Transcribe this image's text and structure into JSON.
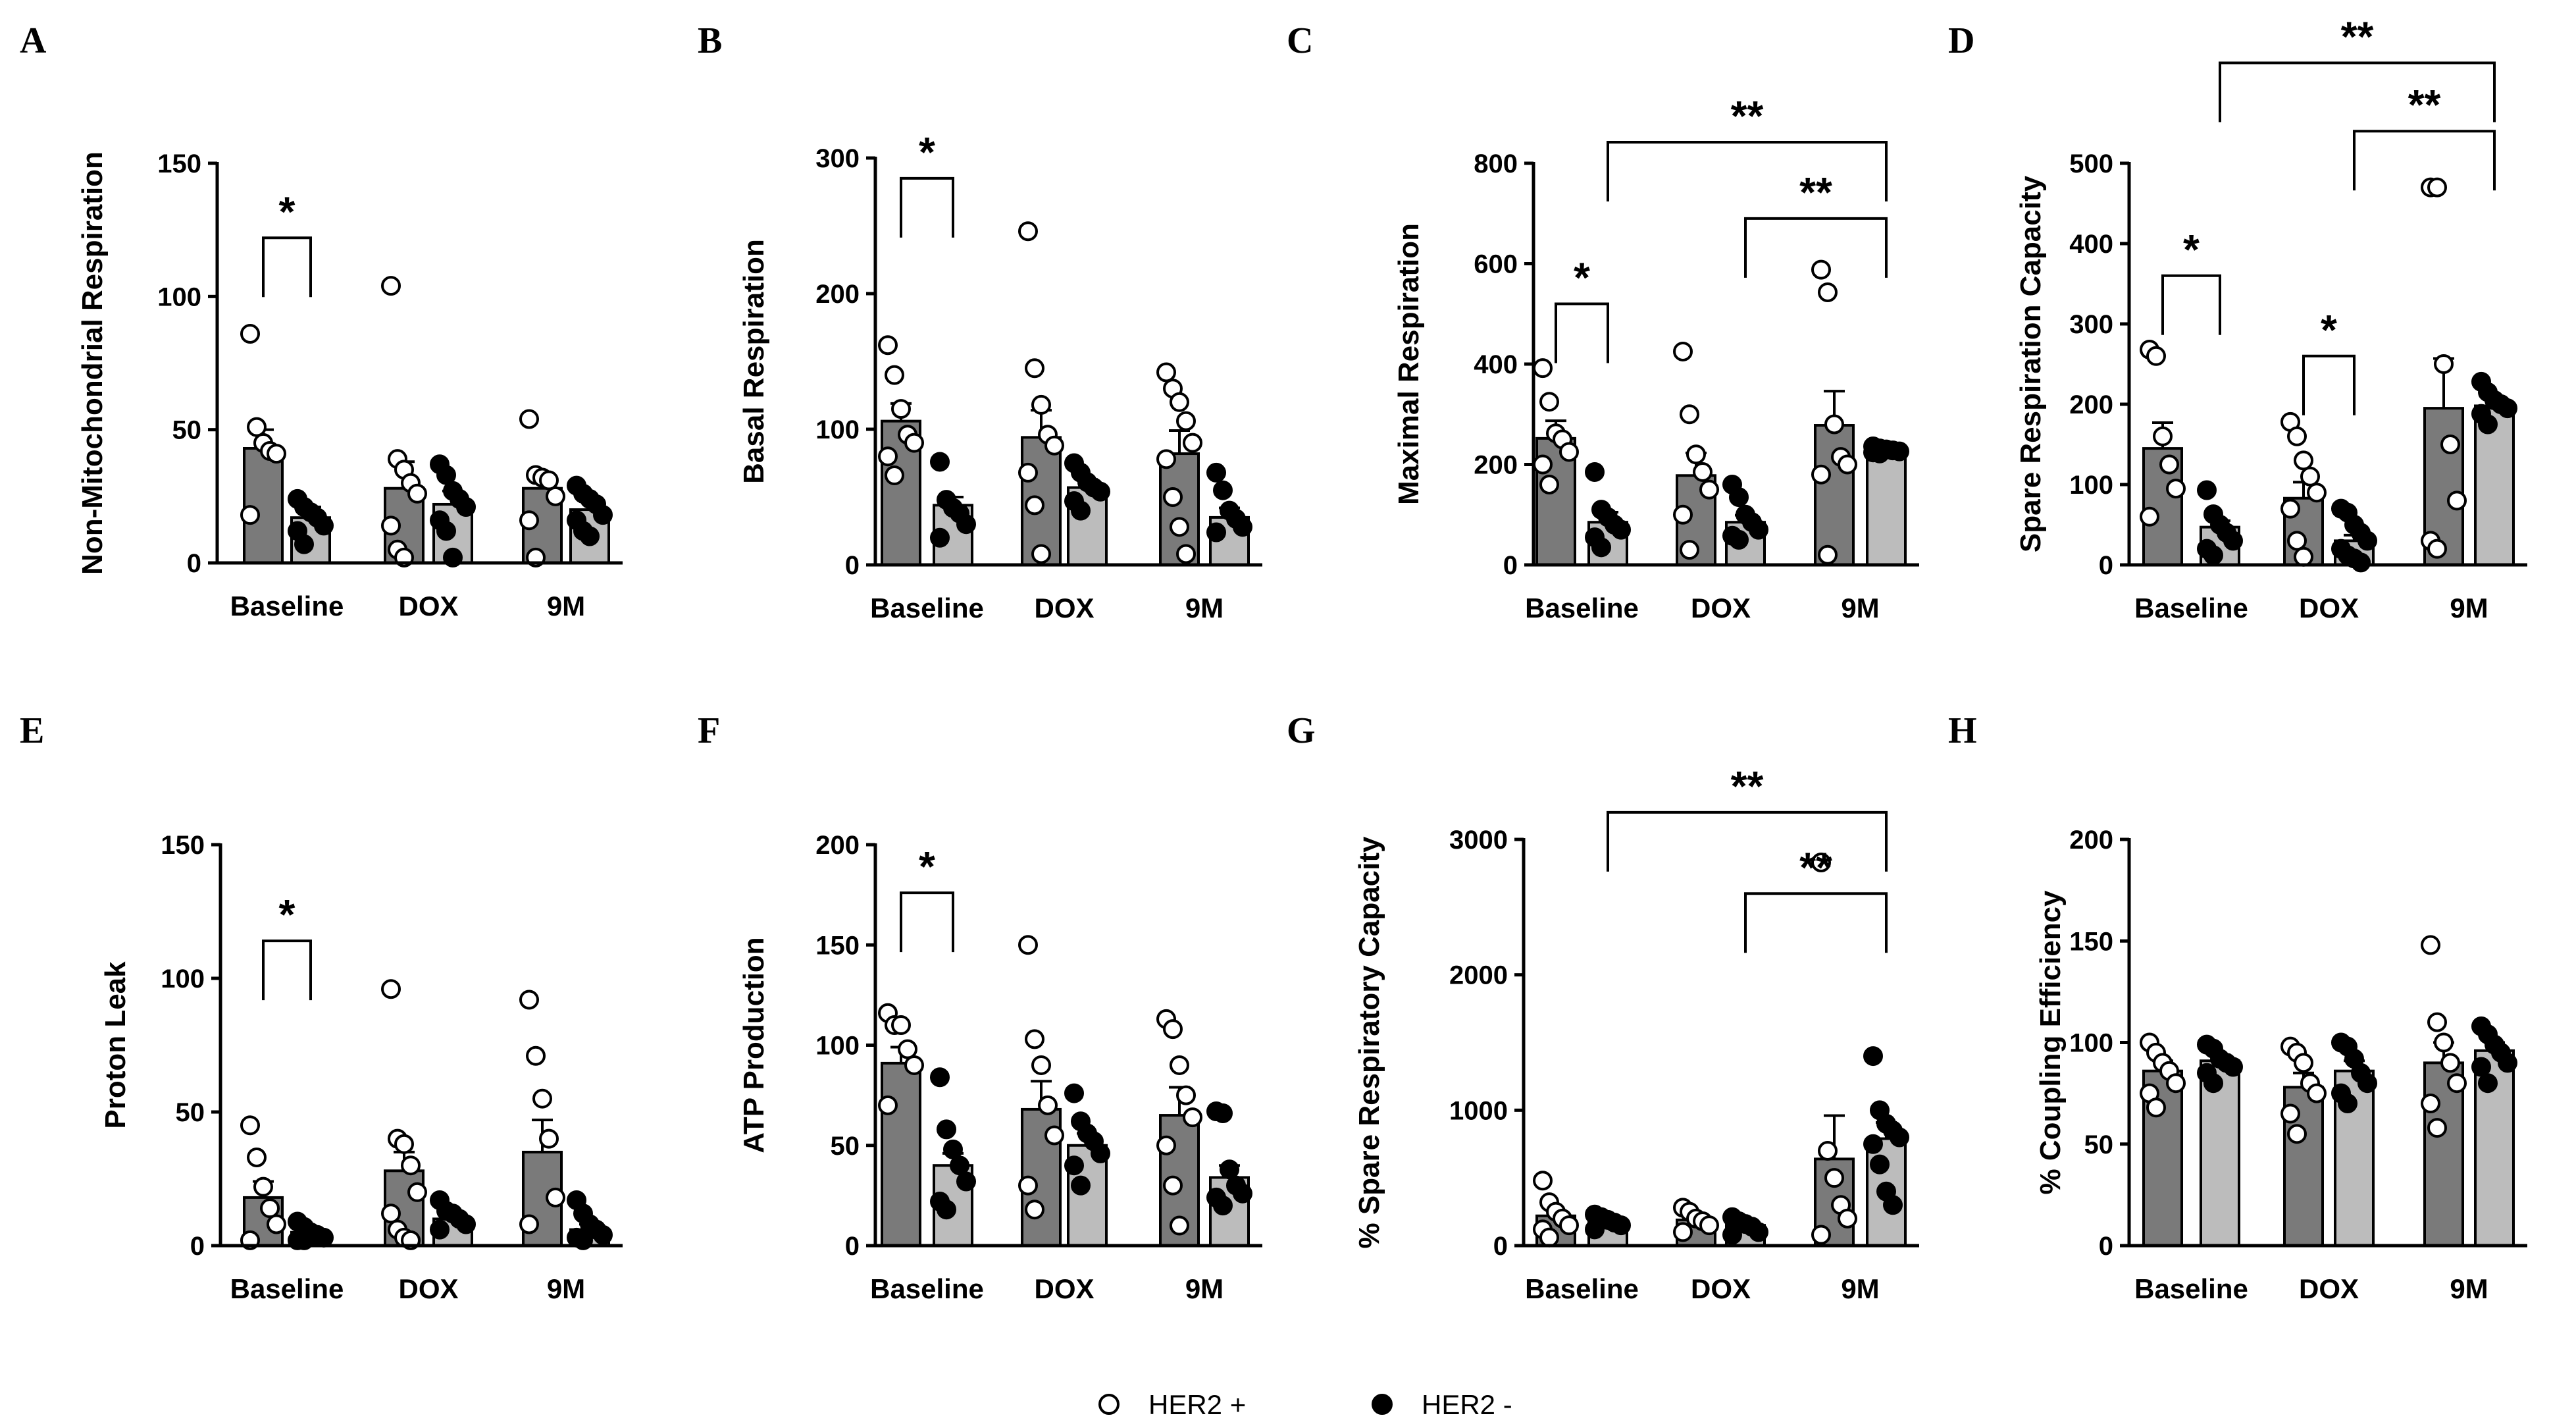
{
  "legend": {
    "items": [
      {
        "label": "HER2 +",
        "marker": "open-circle"
      },
      {
        "label": "HER2 -",
        "marker": "filled-circle"
      }
    ]
  },
  "colors": {
    "bar_her2_pos": "#7a7a7a",
    "bar_her2_neg": "#bcbcbc",
    "axis": "#000000"
  },
  "chart_data": [
    {
      "panel": "A",
      "type": "bar",
      "ylabel": "Non-Mitochondrial Respiration",
      "categories": [
        "Baseline",
        "DOX",
        "9M"
      ],
      "ylim": [
        0,
        150
      ],
      "yticks": [
        0,
        50,
        100,
        150
      ],
      "series": [
        {
          "name": "HER2 +",
          "values": [
            43,
            28,
            28
          ],
          "sem": [
            7,
            10,
            5
          ],
          "points": [
            [
              86,
              51,
              45,
              42,
              41,
              18
            ],
            [
              104,
              39,
              35,
              30,
              26,
              14,
              5,
              2
            ],
            [
              54,
              33,
              32,
              31,
              25,
              16,
              2
            ]
          ]
        },
        {
          "name": "HER2 -",
          "values": [
            17,
            22,
            20
          ],
          "sem": [
            4,
            5,
            3
          ],
          "points": [
            [
              24,
              21,
              19,
              17,
              14,
              12,
              7
            ],
            [
              37,
              33,
              27,
              24,
              21,
              16,
              12,
              2
            ],
            [
              29,
              26,
              24,
              22,
              18,
              16,
              12,
              10
            ]
          ]
        }
      ],
      "significance": [
        {
          "label": "*",
          "from": [
            0,
            0
          ],
          "to": [
            0,
            1
          ],
          "y": 122
        }
      ]
    },
    {
      "panel": "B",
      "type": "bar",
      "ylabel": "Basal Respiration",
      "categories": [
        "Baseline",
        "DOX",
        "9M"
      ],
      "ylim": [
        0,
        300
      ],
      "yticks": [
        0,
        100,
        200,
        300
      ],
      "series": [
        {
          "name": "HER2 +",
          "values": [
            106,
            94,
            82
          ],
          "sem": [
            13,
            20,
            17
          ],
          "points": [
            [
              162,
              140,
              115,
              96,
              90,
              80,
              66
            ],
            [
              246,
              145,
              118,
              96,
              88,
              68,
              44,
              8
            ],
            [
              142,
              130,
              120,
              106,
              90,
              78,
              50,
              28,
              8
            ]
          ]
        },
        {
          "name": "HER2 -",
          "values": [
            44,
            57,
            35
          ],
          "sem": [
            6,
            6,
            7
          ],
          "points": [
            [
              76,
              48,
              42,
              38,
              30,
              20
            ],
            [
              75,
              68,
              61,
              57,
              54,
              47,
              40
            ],
            [
              68,
              55,
              40,
              34,
              28,
              24
            ]
          ]
        }
      ],
      "significance": [
        {
          "label": "*",
          "from": [
            0,
            0
          ],
          "to": [
            0,
            1
          ],
          "y": 285
        }
      ]
    },
    {
      "panel": "C",
      "type": "bar",
      "ylabel": "Maximal Respiration",
      "categories": [
        "Baseline",
        "DOX",
        "9M"
      ],
      "ylim": [
        0,
        800
      ],
      "yticks": [
        0,
        200,
        400,
        600,
        800
      ],
      "series": [
        {
          "name": "HER2 +",
          "values": [
            252,
            178,
            278
          ],
          "sem": [
            35,
            45,
            68
          ],
          "points": [
            [
              392,
              325,
              262,
              250,
              225,
              200,
              160
            ],
            [
              425,
              300,
              220,
              185,
              150,
              100,
              30
            ],
            [
              588,
              543,
              280,
              215,
              200,
              180,
              20
            ]
          ]
        },
        {
          "name": "HER2 -",
          "values": [
            85,
            85,
            228
          ],
          "sem": [
            20,
            14,
            4
          ],
          "points": [
            [
              185,
              110,
              95,
              80,
              70,
              55,
              35
            ],
            [
              160,
              135,
              100,
              85,
              70,
              58,
              50
            ],
            [
              236,
              232,
              230,
              228,
              226,
              224,
              222
            ]
          ]
        }
      ],
      "significance": [
        {
          "label": "*",
          "from": [
            0,
            0
          ],
          "to": [
            0,
            1
          ],
          "y": 520
        },
        {
          "label": "**",
          "from": [
            0,
            1
          ],
          "to": [
            2,
            1
          ],
          "y": 842
        },
        {
          "label": "**",
          "from": [
            1,
            1
          ],
          "to": [
            2,
            1
          ],
          "y": 690
        }
      ]
    },
    {
      "panel": "D",
      "type": "bar",
      "ylabel": "Spare Respiration Capacity",
      "categories": [
        "Baseline",
        "DOX",
        "9M"
      ],
      "ylim": [
        0,
        500
      ],
      "yticks": [
        0,
        100,
        200,
        300,
        400,
        500
      ],
      "series": [
        {
          "name": "HER2 +",
          "values": [
            145,
            83,
            195
          ],
          "sem": [
            32,
            20,
            62
          ],
          "points": [
            [
              268,
              260,
              160,
              125,
              95,
              60
            ],
            [
              178,
              160,
              130,
              110,
              90,
              70,
              30,
              10
            ],
            [
              470,
              470,
              250,
              150,
              80,
              30,
              20
            ]
          ]
        },
        {
          "name": "HER2 -",
          "values": [
            47,
            30,
            198
          ],
          "sem": [
            8,
            7,
            10
          ],
          "points": [
            [
              93,
              63,
              50,
              40,
              30,
              20,
              12
            ],
            [
              70,
              65,
              50,
              40,
              30,
              20,
              12,
              8,
              3
            ],
            [
              228,
              215,
              205,
              200,
              195,
              188,
              175
            ]
          ]
        }
      ],
      "significance": [
        {
          "label": "*",
          "from": [
            0,
            0
          ],
          "to": [
            0,
            1
          ],
          "y": 360
        },
        {
          "label": "**",
          "from": [
            0,
            1
          ],
          "to": [
            2,
            1
          ],
          "y": 625
        },
        {
          "label": "**",
          "from": [
            1,
            1
          ],
          "to": [
            2,
            1
          ],
          "y": 540
        },
        {
          "label": "*",
          "from": [
            1,
            0
          ],
          "to": [
            1,
            1
          ],
          "y": 260
        }
      ]
    },
    {
      "panel": "E",
      "type": "bar",
      "ylabel": "Proton Leak",
      "categories": [
        "Baseline",
        "DOX",
        "9M"
      ],
      "ylim": [
        0,
        150
      ],
      "yticks": [
        0,
        50,
        100,
        150
      ],
      "series": [
        {
          "name": "HER2 +",
          "values": [
            18,
            28,
            35
          ],
          "sem": [
            6,
            7,
            12
          ],
          "points": [
            [
              45,
              33,
              22,
              14,
              8,
              2
            ],
            [
              96,
              40,
              38,
              30,
              20,
              12,
              6,
              3,
              2
            ],
            [
              92,
              71,
              55,
              40,
              18,
              8
            ]
          ]
        },
        {
          "name": "HER2 -",
          "values": [
            5,
            10,
            6
          ],
          "sem": [
            1,
            2,
            2
          ],
          "points": [
            [
              9,
              7,
              5,
              4,
              3,
              2,
              2
            ],
            [
              17,
              13,
              12,
              10,
              8,
              6
            ],
            [
              17,
              12,
              8,
              6,
              4,
              3,
              2
            ]
          ]
        }
      ],
      "significance": [
        {
          "label": "*",
          "from": [
            0,
            0
          ],
          "to": [
            0,
            1
          ],
          "y": 114
        }
      ]
    },
    {
      "panel": "F",
      "type": "bar",
      "ylabel": "ATP Production",
      "categories": [
        "Baseline",
        "DOX",
        "9M"
      ],
      "ylim": [
        0,
        200
      ],
      "yticks": [
        0,
        50,
        100,
        150,
        200
      ],
      "series": [
        {
          "name": "HER2 +",
          "values": [
            91,
            68,
            65
          ],
          "sem": [
            8,
            14,
            14
          ],
          "points": [
            [
              116,
              110,
              110,
              98,
              90,
              70
            ],
            [
              150,
              103,
              90,
              70,
              55,
              30,
              18
            ],
            [
              113,
              108,
              90,
              75,
              64,
              50,
              30,
              10
            ]
          ]
        },
        {
          "name": "HER2 -",
          "values": [
            40,
            50,
            34
          ],
          "sem": [
            6,
            6,
            6
          ],
          "points": [
            [
              84,
              58,
              48,
              40,
              32,
              22,
              18
            ],
            [
              76,
              62,
              56,
              52,
              46,
              40,
              30
            ],
            [
              67,
              66,
              38,
              30,
              26,
              24,
              20
            ]
          ]
        }
      ],
      "significance": [
        {
          "label": "*",
          "from": [
            0,
            0
          ],
          "to": [
            0,
            1
          ],
          "y": 176
        }
      ]
    },
    {
      "panel": "G",
      "type": "bar",
      "ylabel": "% Spare Respiratory Capacity",
      "categories": [
        "Baseline",
        "DOX",
        "9M"
      ],
      "ylim": [
        0,
        3000
      ],
      "yticks": [
        0,
        1000,
        2000,
        3000
      ],
      "series": [
        {
          "name": "HER2 +",
          "values": [
            220,
            190,
            640
          ],
          "sem": [
            40,
            30,
            320
          ],
          "points": [
            [
              480,
              320,
              250,
              200,
              150,
              120,
              60
            ],
            [
              280,
              250,
              200,
              180,
              150,
              100
            ],
            [
              2830,
              700,
              500,
              300,
              200,
              80
            ]
          ]
        },
        {
          "name": "HER2 -",
          "values": [
            180,
            150,
            790
          ],
          "sem": [
            15,
            20,
            120
          ],
          "points": [
            [
              230,
              210,
              190,
              170,
              150,
              120
            ],
            [
              210,
              180,
              160,
              140,
              100,
              80
            ],
            [
              1400,
              1000,
              900,
              850,
              800,
              750,
              600,
              400,
              300
            ]
          ]
        }
      ],
      "significance": [
        {
          "label": "**",
          "from": [
            0,
            1
          ],
          "to": [
            2,
            1
          ],
          "y": 3200
        },
        {
          "label": "**",
          "from": [
            1,
            1
          ],
          "to": [
            2,
            1
          ],
          "y": 2600
        }
      ]
    },
    {
      "panel": "H",
      "type": "bar",
      "ylabel": "% Coupling Efficiency",
      "categories": [
        "Baseline",
        "DOX",
        "9M"
      ],
      "ylim": [
        0,
        200
      ],
      "yticks": [
        0,
        50,
        100,
        150,
        200
      ],
      "series": [
        {
          "name": "HER2 +",
          "values": [
            86,
            78,
            90
          ],
          "sem": [
            5,
            7,
            10
          ],
          "points": [
            [
              100,
              95,
              90,
              86,
              80,
              75,
              68
            ],
            [
              98,
              95,
              90,
              80,
              75,
              65,
              55
            ],
            [
              148,
              110,
              100,
              90,
              80,
              70,
              58
            ]
          ]
        },
        {
          "name": "HER2 -",
          "values": [
            91,
            86,
            96
          ],
          "sem": [
            3,
            5,
            4
          ],
          "points": [
            [
              99,
              97,
              92,
              90,
              88,
              85,
              80
            ],
            [
              100,
              98,
              92,
              85,
              80,
              75,
              70
            ],
            [
              108,
              104,
              99,
              95,
              90,
              88,
              80
            ]
          ]
        }
      ],
      "significance": []
    }
  ]
}
